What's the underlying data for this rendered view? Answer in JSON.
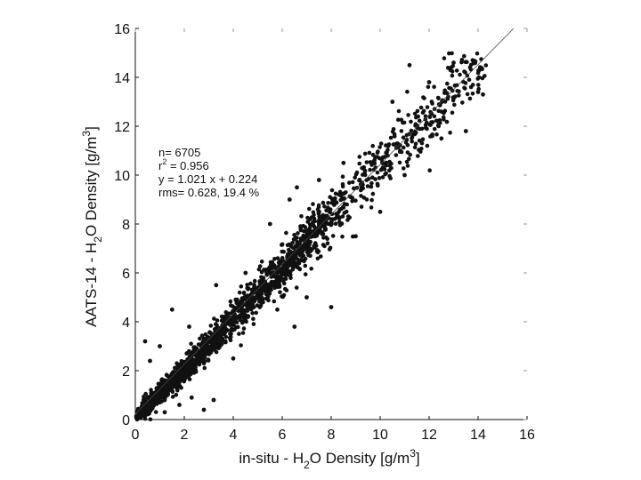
{
  "chart_data": {
    "type": "scatter",
    "title": "",
    "xlabel": {
      "prefix": "in-situ - H",
      "sub": "2",
      "mid": "O Density [g/m",
      "sup": "3",
      "suffix": "]"
    },
    "ylabel": {
      "prefix": "AATS-14 - H",
      "sub": "2",
      "mid": "O Density [g/m",
      "sup": "3",
      "suffix": "]"
    },
    "xlim": [
      0,
      16
    ],
    "ylim": [
      0,
      16
    ],
    "xticks": [
      "0",
      "2",
      "4",
      "6",
      "8",
      "10",
      "12",
      "14",
      "16"
    ],
    "yticks": [
      "0",
      "2",
      "4",
      "6",
      "8",
      "10",
      "12",
      "14",
      "16"
    ],
    "grid": false,
    "stats": {
      "n": "n= 6705",
      "r2_prefix": "r",
      "r2_sup": "2",
      "r2_value": " = 0.956",
      "fit": "y = 1.021 x + 0.224",
      "rms": "rms= 0.628, 19.4 %"
    },
    "fit_line": {
      "slope": 1.021,
      "intercept": 0.224,
      "x_range": [
        0,
        16
      ]
    },
    "series": [
      {
        "cluster_centers": [
          [
            0.3,
            0.3
          ],
          [
            0.5,
            0.6
          ],
          [
            0.8,
            0.9
          ],
          [
            1.0,
            1.0
          ],
          [
            1.2,
            1.3
          ],
          [
            1.5,
            1.5
          ],
          [
            1.8,
            1.7
          ],
          [
            2.0,
            2.1
          ],
          [
            2.3,
            2.2
          ],
          [
            2.5,
            2.6
          ],
          [
            2.8,
            2.8
          ],
          [
            3.0,
            3.1
          ],
          [
            3.3,
            3.2
          ],
          [
            3.6,
            3.8
          ],
          [
            4.0,
            4.2
          ],
          [
            4.3,
            4.5
          ],
          [
            4.6,
            4.7
          ],
          [
            5.0,
            5.1
          ],
          [
            5.3,
            5.4
          ],
          [
            5.6,
            5.8
          ],
          [
            6.0,
            6.1
          ],
          [
            6.3,
            6.5
          ],
          [
            6.6,
            6.8
          ],
          [
            7.0,
            7.2
          ],
          [
            7.3,
            7.5
          ],
          [
            7.6,
            7.9
          ],
          [
            8.0,
            8.3
          ],
          [
            8.5,
            8.8
          ],
          [
            9.0,
            9.4
          ],
          [
            9.5,
            10.0
          ],
          [
            10.0,
            10.5
          ],
          [
            10.5,
            11.0
          ],
          [
            11.0,
            11.5
          ],
          [
            11.5,
            12.0
          ],
          [
            12.0,
            12.4
          ],
          [
            12.5,
            12.8
          ],
          [
            13.0,
            13.5
          ],
          [
            13.5,
            14.0
          ],
          [
            14.0,
            14.4
          ]
        ],
        "outliers": [
          [
            0.4,
            3.2
          ],
          [
            0.6,
            2.4
          ],
          [
            1.0,
            3.0
          ],
          [
            1.5,
            4.5
          ],
          [
            2.2,
            3.8
          ],
          [
            3.3,
            5.5
          ],
          [
            1.2,
            0.3
          ],
          [
            1.8,
            0.6
          ],
          [
            2.3,
            0.9
          ],
          [
            2.8,
            0.4
          ],
          [
            3.2,
            0.8
          ],
          [
            4.0,
            2.5
          ],
          [
            4.5,
            6.0
          ],
          [
            5.5,
            8.0
          ],
          [
            5.8,
            4.5
          ],
          [
            6.3,
            9.0
          ],
          [
            6.6,
            9.5
          ],
          [
            7.0,
            5.0
          ],
          [
            7.5,
            9.8
          ],
          [
            8.5,
            10.5
          ],
          [
            9.0,
            7.5
          ],
          [
            10.0,
            8.5
          ],
          [
            10.5,
            13.0
          ],
          [
            11.0,
            10.0
          ],
          [
            11.2,
            14.5
          ],
          [
            12.0,
            13.8
          ],
          [
            12.5,
            11.5
          ],
          [
            13.0,
            14.6
          ],
          [
            13.5,
            11.8
          ],
          [
            14.0,
            13.4
          ],
          [
            14.2,
            13.3
          ],
          [
            8.0,
            4.6
          ],
          [
            6.5,
            3.8
          ]
        ]
      }
    ]
  }
}
